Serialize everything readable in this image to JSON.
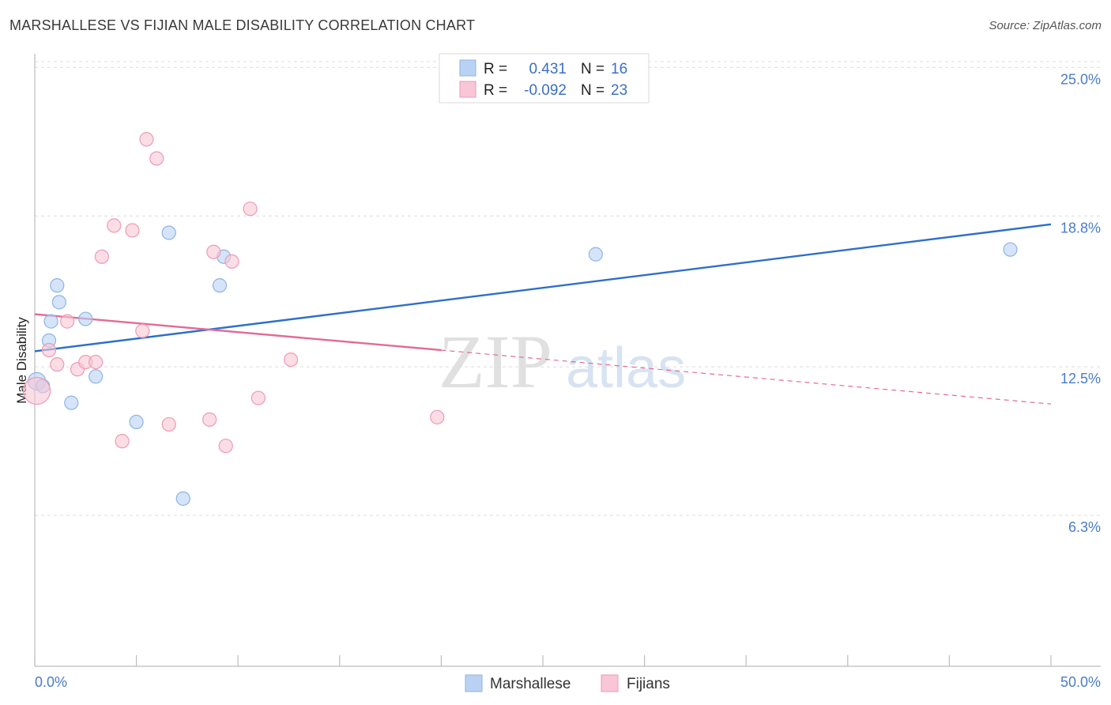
{
  "title": "MARSHALLESE VS FIJIAN MALE DISABILITY CORRELATION CHART",
  "source": "Source: ZipAtlas.com",
  "watermark": {
    "part1": "ZIP",
    "part2": "atlas"
  },
  "colors": {
    "blue_fill": "#b9d2f3",
    "blue_stroke": "#8db4e6",
    "blue_line": "#2d6fcb",
    "pink_fill": "#f8c6d6",
    "pink_stroke": "#ee9ab4",
    "pink_line": "#e36a96",
    "grid": "#dcdcdc",
    "tick_label": "#4a7cc9"
  },
  "legend": {
    "rows": [
      {
        "r_label": "R =",
        "r_value": "0.431",
        "n_label": "N =",
        "n_value": "16"
      },
      {
        "r_label": "R =",
        "r_value": "-0.092",
        "n_label": "N =",
        "n_value": "23"
      }
    ]
  },
  "chart_data": {
    "type": "scatter",
    "title": "MARSHALLESE VS FIJIAN MALE DISABILITY CORRELATION CHART",
    "xlabel": "",
    "ylabel": "Male Disability",
    "xlim": [
      0,
      50
    ],
    "ylim": [
      0,
      26.2
    ],
    "x_tick_labels": [
      "0.0%",
      "50.0%"
    ],
    "y_ticks": [
      {
        "value": 25.0,
        "label": "25.0%"
      },
      {
        "value": 18.8,
        "label": "18.8%"
      },
      {
        "value": 12.5,
        "label": "12.5%"
      },
      {
        "value": 6.3,
        "label": "6.3%"
      }
    ],
    "legend_position": "bottom-center",
    "series": [
      {
        "name": "Marshallese",
        "color": "#b9d2f3",
        "points": [
          {
            "x": 0.1,
            "y": 11.9
          },
          {
            "x": 0.4,
            "y": 11.7
          },
          {
            "x": 0.7,
            "y": 13.6
          },
          {
            "x": 0.8,
            "y": 14.4
          },
          {
            "x": 1.1,
            "y": 15.9
          },
          {
            "x": 1.2,
            "y": 15.2
          },
          {
            "x": 1.8,
            "y": 11.0
          },
          {
            "x": 2.5,
            "y": 14.5
          },
          {
            "x": 3.0,
            "y": 12.1
          },
          {
            "x": 5.0,
            "y": 10.2
          },
          {
            "x": 6.6,
            "y": 18.1
          },
          {
            "x": 7.3,
            "y": 7.0
          },
          {
            "x": 9.1,
            "y": 15.9
          },
          {
            "x": 9.3,
            "y": 17.1
          },
          {
            "x": 27.6,
            "y": 17.2
          },
          {
            "x": 48.0,
            "y": 17.4
          }
        ],
        "trend": {
          "x": [
            0,
            50
          ],
          "y": [
            13.15,
            18.45
          ],
          "style": "solid"
        }
      },
      {
        "name": "Fijians",
        "color": "#f8c6d6",
        "points": [
          {
            "x": 0.1,
            "y": 11.5
          },
          {
            "x": 0.7,
            "y": 13.2
          },
          {
            "x": 1.1,
            "y": 12.6
          },
          {
            "x": 1.6,
            "y": 14.4
          },
          {
            "x": 2.1,
            "y": 12.4
          },
          {
            "x": 2.5,
            "y": 12.7
          },
          {
            "x": 3.0,
            "y": 12.7
          },
          {
            "x": 3.3,
            "y": 17.1
          },
          {
            "x": 3.9,
            "y": 18.4
          },
          {
            "x": 4.3,
            "y": 9.4
          },
          {
            "x": 4.8,
            "y": 18.2
          },
          {
            "x": 5.3,
            "y": 14.0
          },
          {
            "x": 5.5,
            "y": 22.0
          },
          {
            "x": 6.0,
            "y": 21.2
          },
          {
            "x": 6.6,
            "y": 10.1
          },
          {
            "x": 8.6,
            "y": 10.3
          },
          {
            "x": 8.8,
            "y": 17.3
          },
          {
            "x": 9.4,
            "y": 9.2
          },
          {
            "x": 9.7,
            "y": 16.9
          },
          {
            "x": 10.6,
            "y": 19.1
          },
          {
            "x": 11.0,
            "y": 11.2
          },
          {
            "x": 12.6,
            "y": 12.8
          },
          {
            "x": 19.8,
            "y": 10.4
          }
        ],
        "trend": {
          "x": [
            0,
            20
          ],
          "y": [
            14.7,
            13.2
          ],
          "dashed_extension": {
            "x": [
              20,
              50
            ],
            "y": [
              13.2,
              10.95
            ]
          }
        }
      }
    ]
  }
}
